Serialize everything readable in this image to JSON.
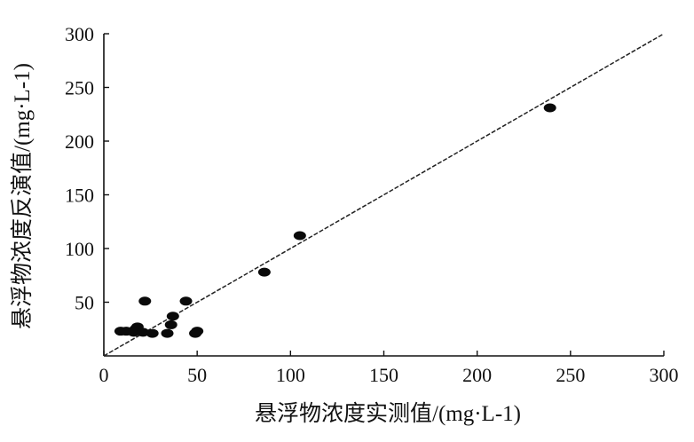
{
  "chart_data": {
    "type": "scatter",
    "xlabel": "悬浮物浓度实测值/(mg·L-1)",
    "ylabel": "悬浮物浓度反演值/(mg·L-1)",
    "xlim": [
      0,
      300
    ],
    "ylim": [
      0,
      300
    ],
    "x_ticks": [
      "0",
      "50",
      "100",
      "150",
      "200",
      "250",
      "300"
    ],
    "y_ticks": [
      "50",
      "100",
      "150",
      "200",
      "250",
      "300"
    ],
    "grid": false,
    "reference_line": {
      "style": "dashed",
      "from": [
        0,
        0
      ],
      "to": [
        300,
        300
      ]
    },
    "points": [
      {
        "x": 9,
        "y": 23
      },
      {
        "x": 12,
        "y": 23
      },
      {
        "x": 16,
        "y": 22
      },
      {
        "x": 17,
        "y": 25
      },
      {
        "x": 18,
        "y": 27
      },
      {
        "x": 21,
        "y": 22
      },
      {
        "x": 22,
        "y": 51
      },
      {
        "x": 26,
        "y": 21
      },
      {
        "x": 34,
        "y": 21
      },
      {
        "x": 36,
        "y": 29
      },
      {
        "x": 37,
        "y": 37
      },
      {
        "x": 44,
        "y": 51
      },
      {
        "x": 49,
        "y": 21
      },
      {
        "x": 50,
        "y": 23
      },
      {
        "x": 86,
        "y": 78
      },
      {
        "x": 105,
        "y": 112
      },
      {
        "x": 239,
        "y": 231
      }
    ]
  }
}
